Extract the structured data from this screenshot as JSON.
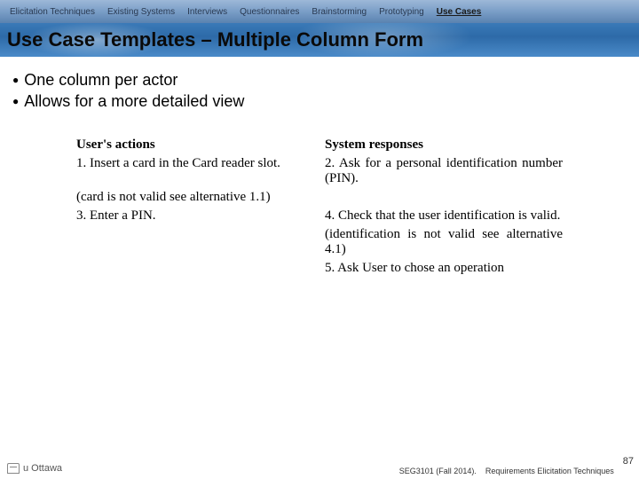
{
  "nav": {
    "items": [
      {
        "label": "Elicitation Techniques",
        "active": false
      },
      {
        "label": "Existing Systems",
        "active": false
      },
      {
        "label": "Interviews",
        "active": false
      },
      {
        "label": "Questionnaires",
        "active": false
      },
      {
        "label": "Brainstorming",
        "active": false
      },
      {
        "label": "Prototyping",
        "active": false
      },
      {
        "label": "Use Cases",
        "active": true
      }
    ]
  },
  "title": "Use Case Templates – Multiple Column Form",
  "bullets": [
    "One column per actor",
    "Allows for a more detailed view"
  ],
  "usecase": {
    "headers": [
      "User's actions",
      "System responses"
    ],
    "rows": [
      [
        "1. Insert a card in the Card reader slot.",
        "2. Ask for a personal identification number (PIN)."
      ],
      [
        "(card is not valid see alternative 1.1)",
        ""
      ],
      [
        "3. Enter a PIN.",
        "4. Check that the user identification is valid."
      ],
      [
        "",
        "(identification is not valid see alternative 4.1)"
      ],
      [
        "",
        "5. Ask User to chose an operation"
      ]
    ]
  },
  "footer": {
    "course": "SEG3101 (Fall 2014).",
    "topic": "Requirements Elicitation Techniques",
    "page": "87",
    "logo_text": "u Ottawa"
  },
  "colors": {
    "nav_grad_top": "#9db8d8",
    "nav_grad_bot": "#5a82b0",
    "title_grad": "#3a7ab8",
    "text": "#000000",
    "bg": "#ffffff"
  }
}
